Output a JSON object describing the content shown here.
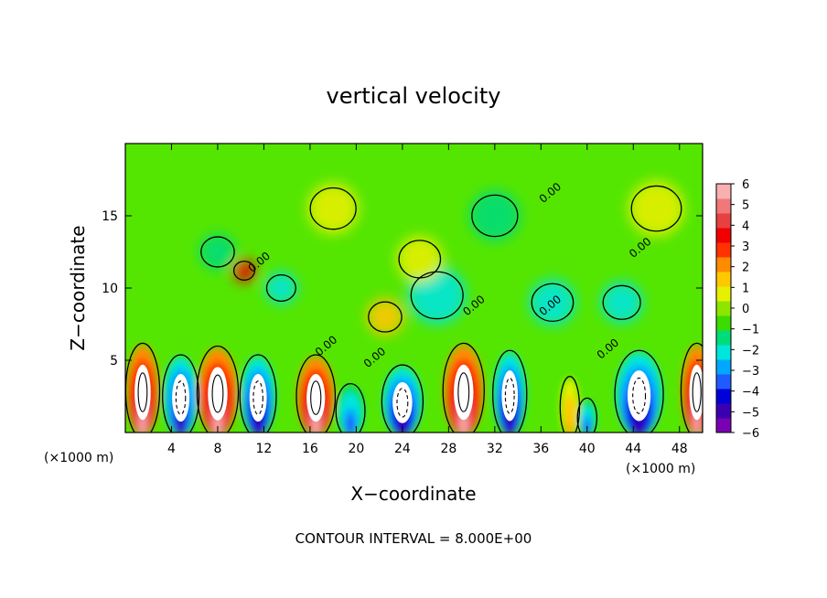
{
  "chart_data": {
    "type": "heatmap",
    "title": "vertical velocity",
    "xlabel": "X−coordinate",
    "ylabel": "Z−coordinate",
    "x_unit": "(×1000 m)",
    "y_unit": "(×1000 m)",
    "xlim": [
      0,
      50
    ],
    "ylim": [
      0,
      20
    ],
    "xticks": [
      4,
      8,
      12,
      16,
      20,
      24,
      28,
      32,
      36,
      40,
      44,
      48
    ],
    "yticks": [
      5,
      10,
      15
    ],
    "colorbar": {
      "range": [
        -6,
        6
      ],
      "ticks": [
        "6",
        "5",
        "4",
        "3",
        "2",
        "1",
        "0",
        "−1",
        "−2",
        "−3",
        "−4",
        "−5",
        "−6"
      ],
      "colors": [
        "#7a00b4",
        "#3a00b0",
        "#0000d8",
        "#1e5cff",
        "#00a8ff",
        "#00e6dc",
        "#00dc78",
        "#3cdc00",
        "#8ce600",
        "#e6f000",
        "#ffc800",
        "#ff8c00",
        "#ff3200",
        "#f00000",
        "#e64040",
        "#f07878",
        "#f8b0b0"
      ]
    },
    "lower_cells": [
      {
        "x": 1.5,
        "w": 1.4,
        "h": 5.8,
        "v": 6,
        "core": true
      },
      {
        "x": 4.8,
        "w": 1.5,
        "h": 5.0,
        "v": -5,
        "core": true
      },
      {
        "x": 8.0,
        "w": 1.7,
        "h": 5.6,
        "v": 6,
        "core": true
      },
      {
        "x": 11.5,
        "w": 1.5,
        "h": 5.0,
        "v": -5.5,
        "core": true
      },
      {
        "x": 16.5,
        "w": 1.6,
        "h": 5.0,
        "v": 6,
        "core": true
      },
      {
        "x": 19.5,
        "w": 1.2,
        "h": 3.0,
        "v": -4,
        "core": false
      },
      {
        "x": 24.0,
        "w": 1.7,
        "h": 4.3,
        "v": -5.5,
        "core": true
      },
      {
        "x": 29.3,
        "w": 1.7,
        "h": 5.8,
        "v": 6,
        "core": true
      },
      {
        "x": 33.3,
        "w": 1.4,
        "h": 5.3,
        "v": -5.5,
        "core": true
      },
      {
        "x": 38.5,
        "w": 0.8,
        "h": 3.5,
        "v": 2,
        "core": false
      },
      {
        "x": 40.0,
        "w": 0.8,
        "h": 2.0,
        "v": -4,
        "core": false
      },
      {
        "x": 44.5,
        "w": 2.0,
        "h": 5.3,
        "v": -5.5,
        "core": true
      },
      {
        "x": 49.5,
        "w": 1.3,
        "h": 5.8,
        "v": 6,
        "core": true
      }
    ],
    "upper_features": [
      {
        "x": 10.3,
        "y": 11.2,
        "r": 1.0,
        "v": 4
      },
      {
        "x": 13.5,
        "y": 10.0,
        "r": 1.4,
        "v": -2
      },
      {
        "x": 22.5,
        "y": 8.0,
        "r": 1.6,
        "v": 1.5
      },
      {
        "x": 27.0,
        "y": 9.5,
        "r": 2.5,
        "v": -2
      },
      {
        "x": 32.0,
        "y": 15.0,
        "r": 2.2,
        "v": -1.5
      },
      {
        "x": 37.0,
        "y": 9.0,
        "r": 2.0,
        "v": -2
      },
      {
        "x": 43.0,
        "y": 9.0,
        "r": 1.8,
        "v": -2
      },
      {
        "x": 8.0,
        "y": 12.5,
        "r": 1.6,
        "v": -1.5
      },
      {
        "x": 18.0,
        "y": 15.5,
        "r": 2.2,
        "v": 1
      },
      {
        "x": 46.0,
        "y": 15.5,
        "r": 2.4,
        "v": 0.5
      },
      {
        "x": 25.5,
        "y": 12.0,
        "r": 2.0,
        "v": 0.5
      }
    ],
    "contour_labels": [
      {
        "text": "0.00",
        "x": 11.8,
        "y": 11.6
      },
      {
        "text": "0.00",
        "x": 17.6,
        "y": 5.8
      },
      {
        "text": "0.00",
        "x": 21.8,
        "y": 5.0
      },
      {
        "text": "0.00",
        "x": 30.4,
        "y": 8.6
      },
      {
        "text": "0.00",
        "x": 37.0,
        "y": 8.6
      },
      {
        "text": "0.00",
        "x": 37.0,
        "y": 16.4
      },
      {
        "text": "0.00",
        "x": 44.8,
        "y": 12.6
      },
      {
        "text": "0.00",
        "x": 42.0,
        "y": 5.6
      }
    ],
    "footer": "CONTOUR INTERVAL = 8.000E+00"
  }
}
